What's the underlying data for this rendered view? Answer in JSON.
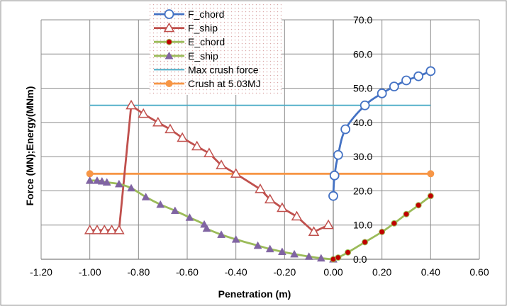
{
  "chart_data": {
    "type": "scatter",
    "xlabel": "Penetration (m)",
    "ylabel": "Force (MN);Energy(MNm)",
    "xlim": [
      -1.2,
      0.6
    ],
    "ylim": [
      0,
      70
    ],
    "x_ticks": [
      -1.2,
      -1.0,
      -0.8,
      -0.6,
      -0.4,
      -0.2,
      0.0,
      0.2,
      0.4,
      0.6
    ],
    "x_tick_labels": [
      "-1.20",
      "-1.00",
      "-0.80",
      "-0.60",
      "-0.40",
      "-0.20",
      "0.00",
      "0.20",
      "0.40",
      "0.60"
    ],
    "y_ticks": [
      0,
      10,
      20,
      30,
      40,
      50,
      60,
      70
    ],
    "y_tick_labels": [
      "0.0",
      "10.0",
      "20.0",
      "30.0",
      "40.0",
      "50.0",
      "60.0",
      "70.0"
    ],
    "y_axis_position": "at x = 0",
    "grid": true,
    "legend_position": "top-left (over plot area)",
    "series": [
      {
        "name": "F_chord",
        "color": "#4472C4",
        "marker": "open-circle",
        "smooth": true,
        "x": [
          0.0,
          0.005,
          0.02,
          0.05,
          0.13,
          0.2,
          0.25,
          0.3,
          0.35,
          0.4
        ],
        "y": [
          18.5,
          24.5,
          30.5,
          38.0,
          45.0,
          48.5,
          50.5,
          52.3,
          53.5,
          55.0
        ]
      },
      {
        "name": "F_ship",
        "color": "#C0504D",
        "marker": "open-triangle",
        "smooth": false,
        "x": [
          -1.0,
          -0.97,
          -0.94,
          -0.91,
          -0.88,
          -0.83,
          -0.78,
          -0.72,
          -0.67,
          -0.62,
          -0.56,
          -0.51,
          -0.46,
          -0.4,
          -0.3,
          -0.26,
          -0.21,
          -0.15,
          -0.08,
          -0.02
        ],
        "y": [
          8.5,
          8.5,
          8.5,
          8.5,
          8.5,
          45.0,
          42.5,
          40.0,
          38.0,
          35.5,
          33.0,
          31.0,
          27.5,
          25.0,
          20.5,
          17.5,
          15.0,
          12.5,
          8.0,
          10.0
        ]
      },
      {
        "name": "E_chord",
        "color": "#9BBB59",
        "marker": "filled-circle",
        "markerColor": "#C00000",
        "smooth": true,
        "x": [
          0.0,
          0.02,
          0.06,
          0.13,
          0.2,
          0.25,
          0.3,
          0.35,
          0.4
        ],
        "y": [
          0.0,
          0.5,
          2.0,
          5.0,
          8.0,
          10.5,
          13.2,
          15.8,
          18.5
        ]
      },
      {
        "name": "E_ship",
        "color": "#9BBB59",
        "marker": "filled-triangle",
        "markerColor": "#8064A2",
        "smooth": true,
        "x": [
          -1.0,
          -0.97,
          -0.95,
          -0.93,
          -0.88,
          -0.83,
          -0.77,
          -0.71,
          -0.65,
          -0.59,
          -0.53,
          -0.52,
          -0.46,
          -0.4,
          -0.31,
          -0.26,
          -0.21,
          -0.16,
          -0.1,
          -0.05,
          0.0
        ],
        "y": [
          23.0,
          23.0,
          22.8,
          22.5,
          22.0,
          20.8,
          18.2,
          16.0,
          14.2,
          12.2,
          10.2,
          9.0,
          7.2,
          5.8,
          4.0,
          3.0,
          2.2,
          1.5,
          0.8,
          0.3,
          0.0
        ]
      },
      {
        "name": "Max crush force",
        "color": "#4BACC6",
        "marker": "none",
        "smooth": false,
        "x": [
          -1.0,
          0.4
        ],
        "y": [
          45.0,
          45.0
        ]
      },
      {
        "name": "Crush at 5.03MJ",
        "color": "#F79646",
        "marker": "filled-circle-ends",
        "markerColor": "#F79646",
        "smooth": false,
        "x": [
          -1.0,
          0.4
        ],
        "y": [
          25.0,
          25.0
        ]
      }
    ]
  }
}
